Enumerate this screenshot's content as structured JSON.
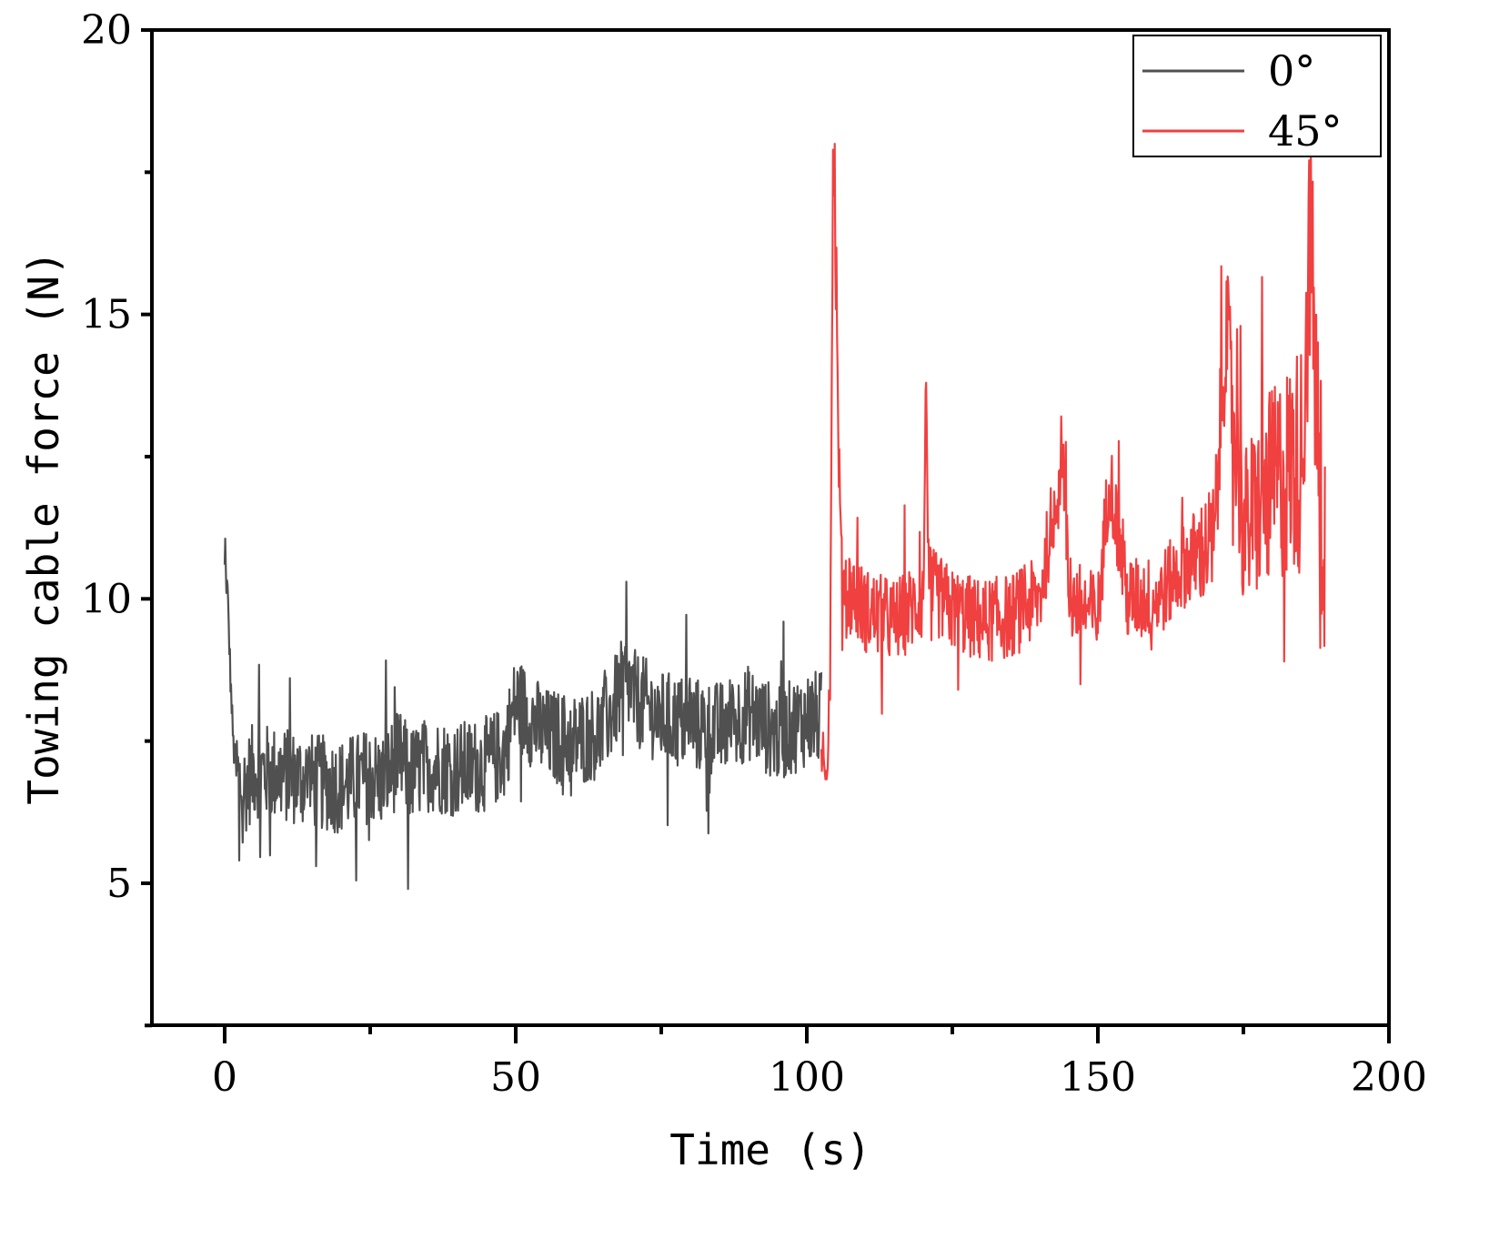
{
  "chart_data": {
    "type": "line",
    "title": "",
    "xlabel": "Time (s)",
    "ylabel": "Towing cable force (N)",
    "xlim": [
      -12,
      200
    ],
    "ylim": [
      2.5,
      20
    ],
    "x_ticks": [
      0,
      50,
      100,
      150,
      200
    ],
    "x_tick_labels": [
      "0",
      "50",
      "100",
      "150",
      "200"
    ],
    "x_minor_ticks": [
      -25,
      25,
      75,
      125,
      175
    ],
    "y_ticks": [
      5,
      10,
      15,
      20
    ],
    "y_tick_labels": [
      "5",
      "10",
      "15",
      "20"
    ],
    "y_minor_ticks": [
      2.5,
      7.5,
      12.5,
      17.5
    ],
    "grid": false,
    "legend_position": "upper right",
    "series": [
      {
        "name": "0°",
        "color": "#505050",
        "x_range": [
          0,
          102.5
        ],
        "description": "Noisy signal starting at ~10.6 N, dropping to ~7 N by t≈2 s, fluctuating ±1.5 N with gradual rise to ~8 N by t≈100 s",
        "x": [
          0,
          0.5,
          1,
          1.5,
          2,
          3,
          5,
          10,
          15,
          20,
          25,
          27,
          30,
          32,
          35,
          40,
          45,
          48,
          50,
          55,
          60,
          65,
          69,
          70,
          75,
          80,
          85,
          90,
          95,
          100,
          102.5
        ],
        "y": [
          10.6,
          10.1,
          8.6,
          7.4,
          7.0,
          6.6,
          7.0,
          6.9,
          6.8,
          6.7,
          6.9,
          6.8,
          7.2,
          6.9,
          7.1,
          7.0,
          7.1,
          7.3,
          8.2,
          7.6,
          7.5,
          7.7,
          8.6,
          8.3,
          7.9,
          7.8,
          7.7,
          8.0,
          7.6,
          7.9,
          7.9
        ],
        "max_peaks": [
          {
            "x": 0,
            "y": 10.6
          },
          {
            "x": 69,
            "y": 10.3
          },
          {
            "x": 96,
            "y": 9.6
          }
        ],
        "min_troughs": [
          {
            "x": 31.5,
            "y": 4.9
          },
          {
            "x": 2.5,
            "y": 5.4
          }
        ]
      },
      {
        "name": "45°",
        "color": "#F04040",
        "x_range": [
          102.5,
          189
        ],
        "description": "Starts ~7.2 N, jumps at t≈104.5 s to peak ~18 N, decays to ~10 N, fluctuating around 9.5–10.5 N with growing amplitude after t≈165 s",
        "x": [
          102.5,
          103.5,
          104,
          104.5,
          105,
          105.5,
          106,
          107,
          110,
          115,
          120,
          120.5,
          121,
          125,
          130,
          135,
          140,
          144,
          145,
          150,
          152,
          155,
          160,
          165,
          170,
          172,
          175,
          180,
          185,
          186.5,
          188,
          189
        ],
        "y": [
          7.2,
          7.0,
          8.5,
          18.0,
          15.5,
          12.5,
          10.5,
          10.2,
          9.8,
          9.6,
          10.0,
          13.8,
          10.2,
          9.8,
          9.6,
          9.7,
          10.0,
          12.7,
          10.0,
          9.7,
          12.2,
          10.0,
          10.0,
          10.6,
          11.0,
          14.8,
          11.2,
          12.0,
          12.5,
          16.4,
          12.0,
          11.2
        ],
        "max_peaks": [
          {
            "x": 104.8,
            "y": 18.0
          },
          {
            "x": 120.5,
            "y": 13.8
          },
          {
            "x": 144,
            "y": 12.7
          },
          {
            "x": 174.5,
            "y": 14.8
          },
          {
            "x": 186.5,
            "y": 16.4
          }
        ],
        "min_troughs": [
          {
            "x": 126,
            "y": 8.4
          },
          {
            "x": 147,
            "y": 8.5
          },
          {
            "x": 182,
            "y": 8.9
          }
        ]
      }
    ]
  },
  "legend": {
    "items": [
      {
        "label": "0°",
        "color": "#505050"
      },
      {
        "label": "45°",
        "color": "#F04040"
      }
    ]
  },
  "axes": {
    "x_title": "Time (s)",
    "y_title": "Towing cable force (N)"
  }
}
